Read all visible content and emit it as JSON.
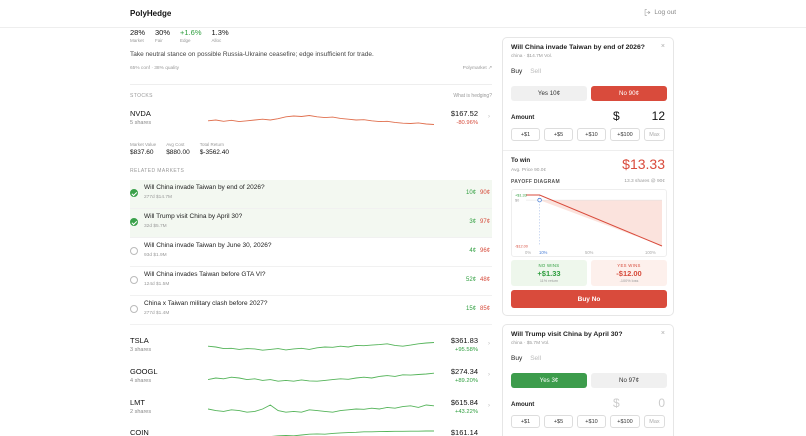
{
  "app": {
    "brand": "PolyHedge",
    "logout_label": "Log out"
  },
  "kpis": [
    {
      "value": "28%",
      "label": "Market",
      "color": ""
    },
    {
      "value": "30%",
      "label": "Fair",
      "color": ""
    },
    {
      "value": "+1.6%",
      "label": "Edge",
      "color": "green"
    },
    {
      "value": "1.3%",
      "label": "Alloc"
    }
  ],
  "stance": "Take neutral stance on possible Russia-Ukraine ceasefire; edge insufficient for trade.",
  "meta": {
    "conf": "65% conf · 38% quality",
    "source": "Polymarket ↗"
  },
  "stocks_section": {
    "label": "STOCKS",
    "help": "What is hedging?"
  },
  "stocks": [
    {
      "ticker": "NVDA",
      "shares": "5 shares",
      "price": "$167.52",
      "change": "-80.96%",
      "dir": "down",
      "spark": [
        0.55,
        0.5,
        0.58,
        0.52,
        0.6,
        0.55,
        0.5,
        0.45,
        0.5,
        0.42,
        0.3,
        0.25,
        0.28,
        0.22,
        0.3,
        0.35,
        0.32,
        0.4,
        0.45,
        0.5,
        0.48,
        0.55,
        0.6,
        0.58,
        0.65,
        0.7,
        0.72,
        0.68,
        0.75,
        0.78
      ]
    },
    {
      "ticker": "TSLA",
      "shares": "3 shares",
      "price": "$361.83",
      "change": "+95.58%",
      "dir": "up",
      "spark": [
        0.55,
        0.5,
        0.4,
        0.42,
        0.35,
        0.4,
        0.38,
        0.3,
        0.35,
        0.4,
        0.32,
        0.38,
        0.42,
        0.35,
        0.45,
        0.5,
        0.48,
        0.55,
        0.5,
        0.6,
        0.58,
        0.62,
        0.65,
        0.7,
        0.6,
        0.55,
        0.62,
        0.7,
        0.75,
        0.78
      ]
    },
    {
      "ticker": "GOOGL",
      "shares": "4 shares",
      "price": "$274.34",
      "change": "+89.20%",
      "dir": "up",
      "spark": [
        0.4,
        0.5,
        0.45,
        0.55,
        0.5,
        0.4,
        0.45,
        0.35,
        0.4,
        0.3,
        0.35,
        0.3,
        0.38,
        0.32,
        0.3,
        0.35,
        0.4,
        0.45,
        0.42,
        0.5,
        0.55,
        0.5,
        0.6,
        0.65,
        0.6,
        0.7,
        0.68,
        0.72,
        0.75,
        0.8
      ]
    },
    {
      "ticker": "LMT",
      "shares": "2 shares",
      "price": "$615.84",
      "change": "+43.22%",
      "dir": "up",
      "spark": [
        0.5,
        0.4,
        0.35,
        0.45,
        0.4,
        0.3,
        0.35,
        0.5,
        0.75,
        0.4,
        0.3,
        0.35,
        0.3,
        0.45,
        0.4,
        0.35,
        0.3,
        0.4,
        0.45,
        0.5,
        0.48,
        0.55,
        0.5,
        0.6,
        0.55,
        0.65,
        0.7,
        0.6,
        0.75,
        0.7
      ]
    },
    {
      "ticker": "COIN",
      "shares": "",
      "price": "$161.14",
      "change": "",
      "dir": "up",
      "spark": [
        0.3,
        0.35,
        0.4,
        0.45,
        0.5,
        0.55,
        0.5,
        0.6,
        0.65,
        0.7,
        0.72,
        0.7,
        0.75,
        0.8,
        0.82,
        0.8,
        0.85,
        0.88,
        0.9,
        0.92,
        0.95,
        0.95,
        0.96,
        0.97,
        0.98,
        0.98,
        0.99,
        0.99,
        1.0,
        1.0
      ]
    }
  ],
  "position": {
    "market_value_label": "Market Value",
    "market_value": "$837.60",
    "avg_cost_label": "Avg Cost",
    "avg_cost": "$880.00",
    "total_return_label": "Total Return",
    "total_return": "$-3562.40"
  },
  "related": {
    "label": "RELATED MARKETS",
    "items": [
      {
        "title": "Will China invade Taiwan by end of 2026?",
        "meta": "277d  $14.7M",
        "yes": "10¢",
        "no": "90¢",
        "selected": true
      },
      {
        "title": "Will Trump visit China by April 30?",
        "meta": "32d  $5.7M",
        "yes": "3¢",
        "no": "97¢",
        "selected": true
      },
      {
        "title": "Will China invade Taiwan by June 30, 2026?",
        "meta": "93d  $1.9M",
        "yes": "4¢",
        "no": "96¢",
        "selected": false
      },
      {
        "title": "Will China invades Taiwan before GTA VI?",
        "meta": "124d  $1.5M",
        "yes": "52¢",
        "no": "48¢",
        "selected": false
      },
      {
        "title": "China x Taiwan military clash before 2027?",
        "meta": "277d  $1.4M",
        "yes": "15¢",
        "no": "85¢",
        "selected": false
      }
    ]
  },
  "trade1": {
    "title": "Will China invade Taiwan by end of 2026?",
    "sub": "china · $14.7M Vol.",
    "buy_tab": "Buy",
    "sell_tab": "Sell",
    "yes_btn": "Yes 10¢",
    "no_btn": "No 90¢",
    "amount_label": "Amount",
    "currency": "$",
    "amount": "12",
    "chips": [
      "+$1",
      "+$5",
      "+$10",
      "+$100",
      "Max"
    ],
    "to_win_label": "To win",
    "avg_price": "Avg. Price 90.0¢",
    "to_win": "$13.33",
    "payoff_label": "PAYOFF DIAGRAM",
    "payoff_meta": "13.3 shares @ 90¢",
    "chart_data": {
      "type": "line",
      "x": [
        0,
        10,
        100
      ],
      "y": [
        1.33,
        1.33,
        -12.0
      ],
      "labels": {
        "top": "+$1.33",
        "zero": "$0",
        "bottom": "-$12.00"
      },
      "ticks": [
        "0%",
        "10%",
        "50%",
        "100%"
      ]
    },
    "no_wins_label": "NO WINS",
    "no_wins_value": "+$1.33",
    "no_wins_sub": "11% return",
    "yes_wins_label": "YES WINS",
    "yes_wins_value": "-$12.00",
    "yes_wins_sub": "-100% loss",
    "buy_label": "Buy No"
  },
  "trade2": {
    "title": "Will Trump visit China by April 30?",
    "sub": "china · $5.7M Vol.",
    "buy_tab": "Buy",
    "sell_tab": "Sell",
    "yes_btn": "Yes 3¢",
    "no_btn": "No 97¢",
    "amount_label": "Amount",
    "currency": "$",
    "amount": "0",
    "chips": [
      "+$1",
      "+$5",
      "+$10",
      "+$100",
      "Max"
    ]
  }
}
